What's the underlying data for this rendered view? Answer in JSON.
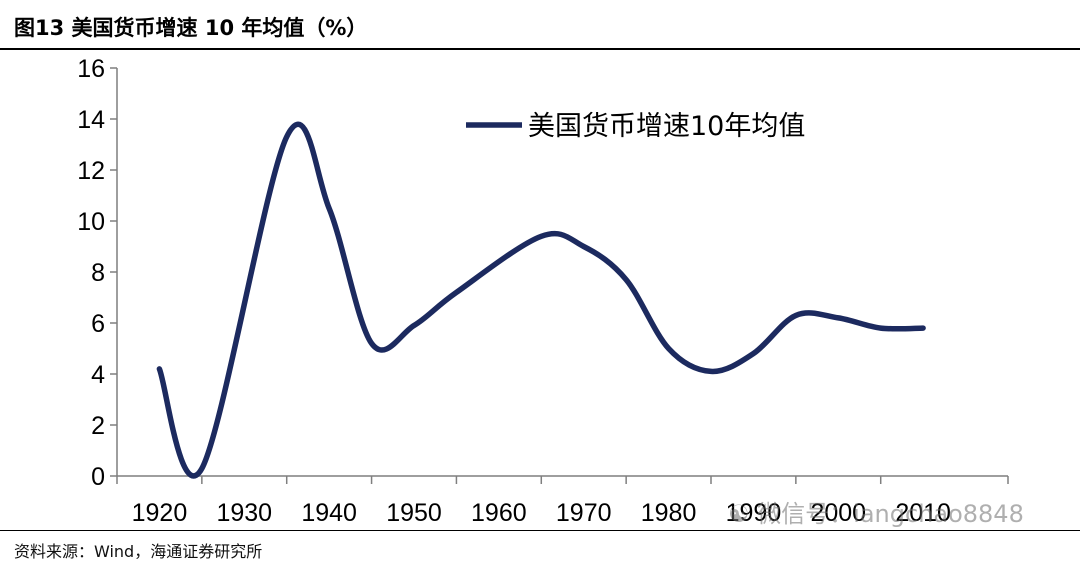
{
  "header": {
    "title": "图13 美国货币增速 10 年均值（%）"
  },
  "footer": {
    "source": "资料来源：Wind，海通证券研究所"
  },
  "watermark": {
    "text": "微信号：iangchao8848"
  },
  "colors": {
    "series": "#1c2a5f",
    "axis": "#7f7f7f",
    "text": "#000000"
  },
  "chart_data": {
    "type": "line",
    "title": "",
    "xlabel": "",
    "ylabel": "",
    "xlim": [
      1915,
      2020
    ],
    "ylim": [
      0,
      16
    ],
    "x_ticks": [
      1920,
      1930,
      1940,
      1950,
      1960,
      1970,
      1980,
      1990,
      2000,
      2010
    ],
    "x_tick_labels": [
      "1920",
      "1930",
      "1940",
      "1950",
      "1960",
      "1970",
      "1980",
      "1990",
      "2000",
      "2010"
    ],
    "y_ticks": [
      0,
      2,
      4,
      6,
      8,
      10,
      12,
      14,
      16
    ],
    "y_tick_labels": [
      "0",
      "2",
      "4",
      "6",
      "8",
      "10",
      "12",
      "14",
      "16"
    ],
    "grid": false,
    "legend_position": "top-right",
    "smooth": true,
    "series": [
      {
        "name": "美国货币增速10年均值",
        "x": [
          1920,
          1925,
          1935,
          1940,
          1945,
          1950,
          1955,
          1965,
          1970,
          1975,
          1980,
          1985,
          1990,
          1995,
          2000,
          2005,
          2010
        ],
        "y": [
          4.2,
          0.3,
          13.3,
          10.5,
          5.2,
          5.9,
          7.2,
          9.4,
          9.0,
          7.7,
          5.0,
          4.1,
          4.8,
          6.3,
          6.2,
          5.8,
          5.8
        ]
      }
    ]
  }
}
